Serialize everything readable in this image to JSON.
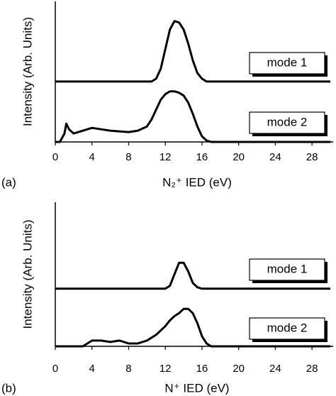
{
  "chart_data": [
    {
      "type": "line",
      "panel_label": "(a)",
      "x_label": "N₂⁺ IED (eV)",
      "y_label": "Intensity (Arb. Units)",
      "x": [
        0,
        0.5,
        1,
        1.2,
        1.5,
        2,
        3,
        4,
        5,
        6,
        7,
        8,
        9,
        10,
        10.5,
        11,
        11.5,
        12,
        12.5,
        13,
        13.5,
        14,
        14.5,
        15,
        15.5,
        16,
        16.5,
        17,
        18,
        20,
        30
      ],
      "series": [
        {
          "name": "mode 1",
          "color": "#000000",
          "values": [
            0.43,
            0.43,
            0.43,
            0.43,
            0.43,
            0.43,
            0.43,
            0.43,
            0.43,
            0.43,
            0.43,
            0.43,
            0.43,
            0.43,
            0.43,
            0.45,
            0.52,
            0.66,
            0.8,
            0.86,
            0.85,
            0.8,
            0.7,
            0.58,
            0.49,
            0.45,
            0.43,
            0.43,
            0.43,
            0.43,
            0.43
          ]
        },
        {
          "name": "mode 2",
          "color": "#000000",
          "values": [
            0,
            0,
            0.06,
            0.13,
            0.09,
            0.06,
            0.08,
            0.1,
            0.09,
            0.08,
            0.075,
            0.07,
            0.08,
            0.11,
            0.16,
            0.23,
            0.3,
            0.34,
            0.36,
            0.36,
            0.35,
            0.33,
            0.28,
            0.2,
            0.11,
            0.04,
            0.01,
            0,
            0,
            0,
            0
          ]
        }
      ],
      "xlim": [
        0,
        30
      ],
      "xticks": [
        0,
        4,
        8,
        12,
        16,
        20,
        24,
        28
      ],
      "ylim": [
        0,
        1
      ]
    },
    {
      "type": "line",
      "panel_label": "(b)",
      "x_label": "N⁺ IED (eV)",
      "y_label": "Intensity (Arb. Units)",
      "x": [
        0,
        0.5,
        1,
        1.2,
        1.5,
        2,
        3,
        4,
        5,
        6,
        7,
        8,
        9,
        10,
        10.5,
        11,
        11.5,
        12,
        12.5,
        13,
        13.5,
        14,
        14.5,
        15,
        15.5,
        16,
        16.5,
        17,
        18,
        20,
        30
      ],
      "series": [
        {
          "name": "mode 1",
          "color": "#000000",
          "values": [
            0.4,
            0.4,
            0.4,
            0.4,
            0.4,
            0.4,
            0.4,
            0.4,
            0.4,
            0.4,
            0.4,
            0.4,
            0.4,
            0.4,
            0.4,
            0.4,
            0.4,
            0.4,
            0.42,
            0.5,
            0.58,
            0.58,
            0.52,
            0.44,
            0.41,
            0.4,
            0.4,
            0.4,
            0.4,
            0.4,
            0.4
          ]
        },
        {
          "name": "mode 2",
          "color": "#000000",
          "values": [
            0,
            0,
            0,
            0,
            0,
            0,
            0,
            0.04,
            0.04,
            0.03,
            0.04,
            0.02,
            0.02,
            0.04,
            0.06,
            0.08,
            0.11,
            0.14,
            0.18,
            0.21,
            0.23,
            0.26,
            0.26,
            0.23,
            0.16,
            0.07,
            0.02,
            0,
            0,
            0,
            0
          ]
        }
      ],
      "xlim": [
        0,
        30
      ],
      "xticks": [
        0,
        4,
        8,
        12,
        16,
        20,
        24,
        28
      ],
      "ylim": [
        0,
        1
      ]
    }
  ]
}
